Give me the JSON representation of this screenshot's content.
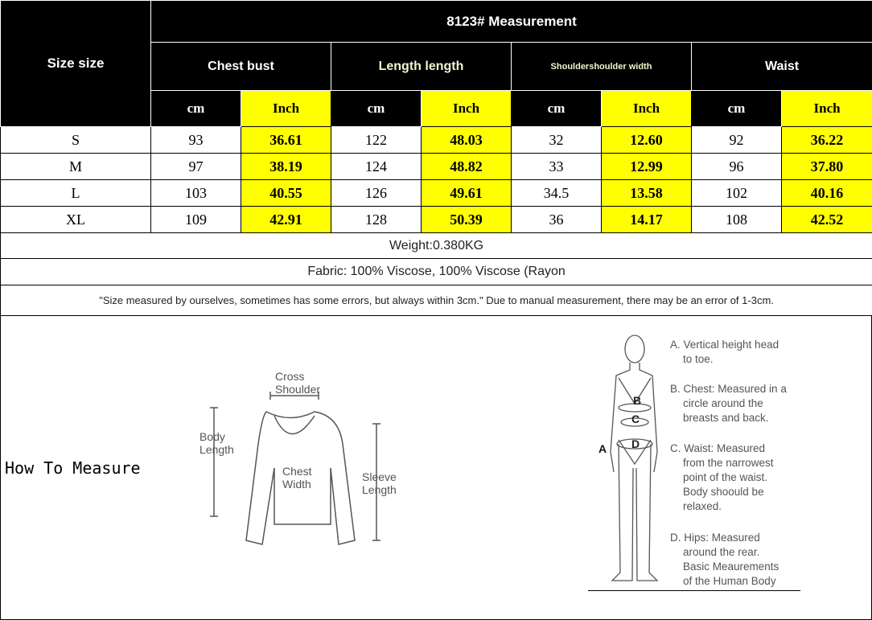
{
  "title": "8123# Measurement",
  "size_header": "Size size",
  "groups": [
    "Chest bust",
    "Length length",
    "Shouldershoulder width",
    "Waist"
  ],
  "units": {
    "cm": "cm",
    "inch": "Inch"
  },
  "rows": [
    {
      "size": "S",
      "values": [
        "93",
        "36.61",
        "122",
        "48.03",
        "32",
        "12.60",
        "92",
        "36.22"
      ]
    },
    {
      "size": "M",
      "values": [
        "97",
        "38.19",
        "124",
        "48.82",
        "33",
        "12.99",
        "96",
        "37.80"
      ]
    },
    {
      "size": "L",
      "values": [
        "103",
        "40.55",
        "126",
        "49.61",
        "34.5",
        "13.58",
        "102",
        "40.16"
      ]
    },
    {
      "size": "XL",
      "values": [
        "109",
        "42.91",
        "128",
        "50.39",
        "36",
        "14.17",
        "108",
        "42.52"
      ]
    }
  ],
  "weight": "Weight:0.380KG",
  "fabric": "Fabric: 100% Viscose, 100% Viscose (Rayon",
  "note": "\"Size measured by ourselves, sometimes has some errors, but always within 3cm.\" Due to manual measurement, there may be an error of 1-3cm.",
  "how_to": "How To Measure",
  "sweater_labels": {
    "cross": "Cross",
    "shoulder": "Shoulder",
    "body": "Body",
    "length": "Length",
    "chest": "Chest",
    "width": "Width",
    "sleeve": "Sleeve",
    "sleeve_length": "Length"
  },
  "body_labels": {
    "a": "A",
    "b": "B",
    "c": "C",
    "d": "D"
  },
  "descriptions": [
    [
      "A. Vertical height head",
      "to toe."
    ],
    [
      "B. Chest: Measured in a",
      "circle around the",
      "breasts and back."
    ],
    [
      "C. Waist: Measured",
      "from the narrowest",
      "point of the waist.",
      "Body shoould be",
      "relaxed."
    ],
    [
      "D. Hips: Measured",
      "around the rear.",
      "Basic Meaurements",
      "of the Human Body"
    ]
  ],
  "colors": {
    "header_bg": "#000000",
    "inch_bg": "#ffff00"
  }
}
